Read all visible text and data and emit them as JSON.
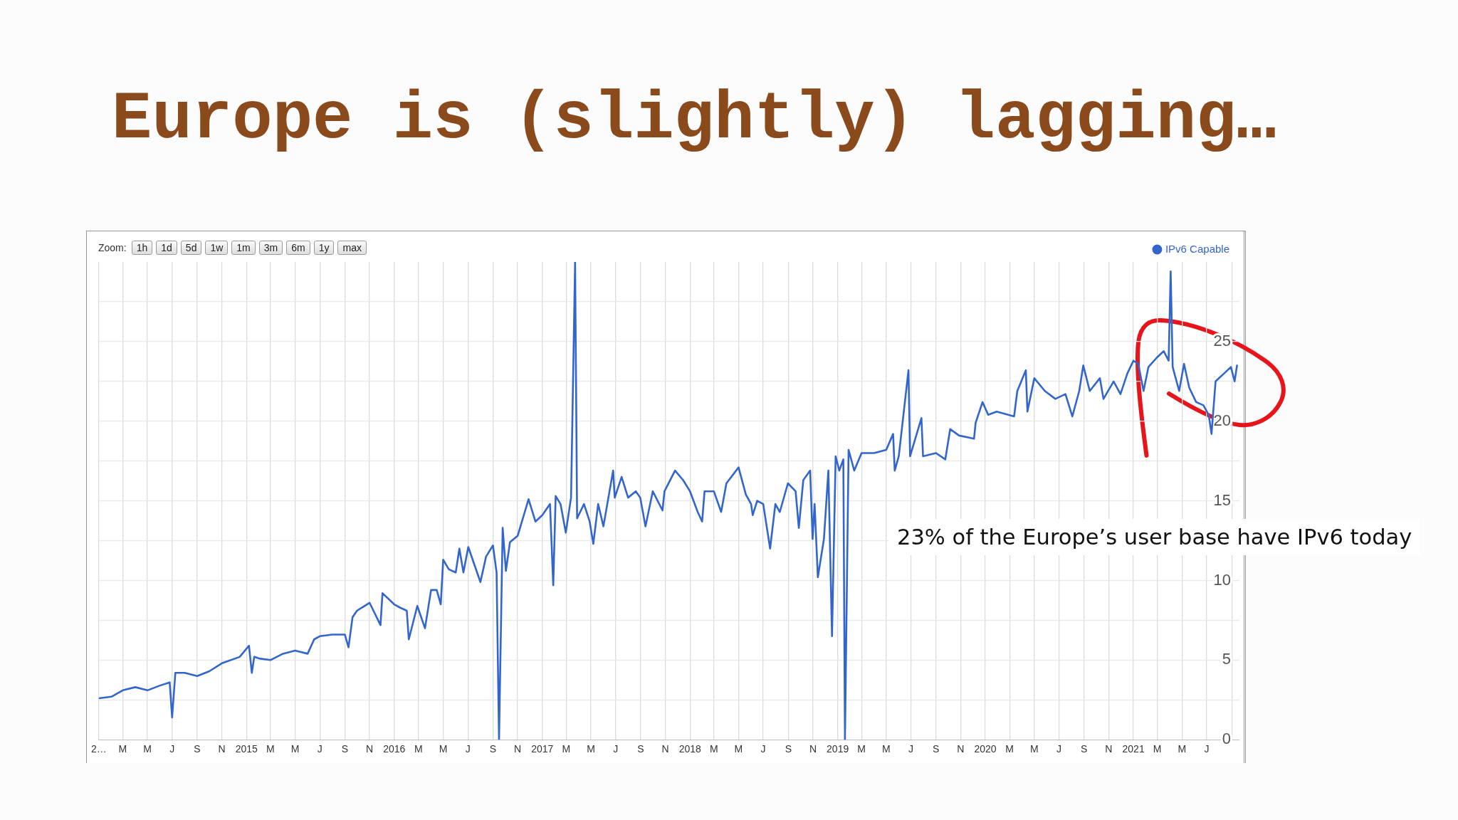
{
  "chart_data": {
    "type": "line",
    "title": "Europe is (slightly) lagging…",
    "annotations": [
      "23% of the Europe’s user base have IPv6 today",
      "Zoom:",
      "1h",
      "1d",
      "5d",
      "1w",
      "1m",
      "3m",
      "6m",
      "1y",
      "max"
    ],
    "legend": "top right",
    "grid": true,
    "xlim": [
      "2014-01-01",
      "2021-09-20"
    ],
    "xticks": [
      {
        "value": "2014-01-01",
        "label": "2…"
      },
      {
        "value": "2014-03-01",
        "label": "M"
      },
      {
        "value": "2014-05-01",
        "label": "M"
      },
      {
        "value": "2014-07-01",
        "label": "J"
      },
      {
        "value": "2014-09-01",
        "label": "S"
      },
      {
        "value": "2014-11-01",
        "label": "N"
      },
      {
        "value": "2015-01-01",
        "label": "2015"
      },
      {
        "value": "2015-03-01",
        "label": "M"
      },
      {
        "value": "2015-05-01",
        "label": "M"
      },
      {
        "value": "2015-07-01",
        "label": "J"
      },
      {
        "value": "2015-09-01",
        "label": "S"
      },
      {
        "value": "2015-11-01",
        "label": "N"
      },
      {
        "value": "2016-01-01",
        "label": "2016"
      },
      {
        "value": "2016-03-01",
        "label": "M"
      },
      {
        "value": "2016-05-01",
        "label": "M"
      },
      {
        "value": "2016-07-01",
        "label": "J"
      },
      {
        "value": "2016-09-01",
        "label": "S"
      },
      {
        "value": "2016-11-01",
        "label": "N"
      },
      {
        "value": "2017-01-01",
        "label": "2017"
      },
      {
        "value": "2017-03-01",
        "label": "M"
      },
      {
        "value": "2017-05-01",
        "label": "M"
      },
      {
        "value": "2017-07-01",
        "label": "J"
      },
      {
        "value": "2017-09-01",
        "label": "S"
      },
      {
        "value": "2017-11-01",
        "label": "N"
      },
      {
        "value": "2018-01-01",
        "label": "2018"
      },
      {
        "value": "2018-03-01",
        "label": "M"
      },
      {
        "value": "2018-05-01",
        "label": "M"
      },
      {
        "value": "2018-07-01",
        "label": "J"
      },
      {
        "value": "2018-09-01",
        "label": "S"
      },
      {
        "value": "2018-11-01",
        "label": "N"
      },
      {
        "value": "2019-01-01",
        "label": "2019"
      },
      {
        "value": "2019-03-01",
        "label": "M"
      },
      {
        "value": "2019-05-01",
        "label": "M"
      },
      {
        "value": "2019-07-01",
        "label": "J"
      },
      {
        "value": "2019-09-01",
        "label": "S"
      },
      {
        "value": "2019-11-01",
        "label": "N"
      },
      {
        "value": "2020-01-01",
        "label": "2020"
      },
      {
        "value": "2020-03-01",
        "label": "M"
      },
      {
        "value": "2020-05-01",
        "label": "M"
      },
      {
        "value": "2020-07-01",
        "label": "J"
      },
      {
        "value": "2020-09-01",
        "label": "S"
      },
      {
        "value": "2020-11-01",
        "label": "N"
      },
      {
        "value": "2021-01-01",
        "label": "2021"
      },
      {
        "value": "2021-03-01",
        "label": "M"
      },
      {
        "value": "2021-05-01",
        "label": "M"
      },
      {
        "value": "2021-07-01",
        "label": "J"
      },
      {
        "value": "2021-09-01",
        "label": null
      }
    ],
    "ylim": [
      0,
      30
    ],
    "yticks": [
      0,
      {
        "value": 2.5,
        "label": null
      },
      5,
      {
        "value": 7.5,
        "label": null
      },
      10,
      {
        "value": 12.5,
        "label": null
      },
      15,
      {
        "value": 17.5,
        "label": null
      },
      20,
      {
        "value": 22.5,
        "label": null
      },
      25,
      {
        "value": 27.5,
        "label": null
      }
    ],
    "x": [
      "2014-01-01",
      "2014-02-01",
      "2014-03-01",
      "2014-04-01",
      "2014-05-01",
      "2014-06-01",
      "2014-06-25",
      "2014-07-01",
      "2014-07-09",
      "2014-08-01",
      "2014-09-01",
      "2014-10-01",
      "2014-11-01",
      "2014-12-15",
      "2015-01-07",
      "2015-01-14",
      "2015-01-20",
      "2015-02-01",
      "2015-03-01",
      "2015-04-01",
      "2015-05-01",
      "2015-06-01",
      "2015-06-17",
      "2015-07-01",
      "2015-08-01",
      "2015-09-01",
      "2015-09-10",
      "2015-09-20",
      "2015-10-01",
      "2015-11-01",
      "2015-11-28",
      "2015-12-03",
      "2016-01-01",
      "2016-01-15",
      "2016-02-01",
      "2016-02-06",
      "2016-02-27",
      "2016-03-17",
      "2016-04-01",
      "2016-04-15",
      "2016-04-25",
      "2016-05-01",
      "2016-05-15",
      "2016-06-01",
      "2016-06-10",
      "2016-06-20",
      "2016-07-02",
      "2016-08-01",
      "2016-08-15",
      "2016-09-01",
      "2016-09-10",
      "2016-09-16",
      "2016-09-25",
      "2016-10-03",
      "2016-10-13",
      "2016-11-01",
      "2016-11-28",
      "2016-12-15",
      "2017-01-01",
      "2017-01-20",
      "2017-01-28",
      "2017-02-03",
      "2017-02-15",
      "2017-02-28",
      "2017-03-13",
      "2017-03-23",
      "2017-03-28",
      "2017-04-14",
      "2017-04-28",
      "2017-05-07",
      "2017-05-19",
      "2017-06-01",
      "2017-06-25",
      "2017-06-29",
      "2017-07-16",
      "2017-08-01",
      "2017-08-20",
      "2017-08-31",
      "2017-09-13",
      "2017-10-01",
      "2017-10-25",
      "2017-10-30",
      "2017-11-25",
      "2017-12-15",
      "2018-01-01",
      "2018-01-20",
      "2018-01-31",
      "2018-02-06",
      "2018-03-01",
      "2018-03-19",
      "2018-04-01",
      "2018-05-01",
      "2018-05-19",
      "2018-06-01",
      "2018-06-05",
      "2018-06-16",
      "2018-07-01",
      "2018-07-18",
      "2018-07-31",
      "2018-08-11",
      "2018-08-31",
      "2018-09-19",
      "2018-09-27",
      "2018-10-08",
      "2018-10-25",
      "2018-10-31",
      "2018-11-05",
      "2018-11-13",
      "2018-11-28",
      "2018-12-09",
      "2018-12-18",
      "2018-12-27",
      "2019-01-05",
      "2019-01-15",
      "2019-01-19",
      "2019-01-28",
      "2019-02-11",
      "2019-03-01",
      "2019-04-01",
      "2019-05-01",
      "2019-05-18",
      "2019-05-22",
      "2019-06-01",
      "2019-06-25",
      "2019-06-29",
      "2019-07-27",
      "2019-07-31",
      "2019-09-01",
      "2019-09-24",
      "2019-10-06",
      "2019-10-28",
      "2019-12-04",
      "2019-12-08",
      "2019-12-25",
      "2020-01-08",
      "2020-01-29",
      "2020-03-12",
      "2020-03-20",
      "2020-04-10",
      "2020-04-14",
      "2020-05-01",
      "2020-05-27",
      "2020-06-22",
      "2020-07-17",
      "2020-08-03",
      "2020-08-20",
      "2020-08-30",
      "2020-09-15",
      "2020-10-10",
      "2020-10-19",
      "2020-11-13",
      "2020-11-30",
      "2020-12-17",
      "2021-01-01",
      "2021-01-13",
      "2021-01-26",
      "2021-02-07",
      "2021-02-28",
      "2021-03-17",
      "2021-03-29",
      "2021-04-03",
      "2021-04-08",
      "2021-04-24",
      "2021-05-06",
      "2021-05-19",
      "2021-06-05",
      "2021-06-23",
      "2021-07-06",
      "2021-07-13",
      "2021-07-23",
      "2021-08-13",
      "2021-08-30",
      "2021-09-08",
      "2021-09-14"
    ],
    "series": [
      {
        "name": "IPv6 Capable",
        "color": "#3366cc",
        "values": [
          2.6,
          2.7,
          3.1,
          3.3,
          3.1,
          3.4,
          3.6,
          1.4,
          4.2,
          4.2,
          4.0,
          4.3,
          4.8,
          5.2,
          5.9,
          4.2,
          5.2,
          5.1,
          5.0,
          5.4,
          5.6,
          5.4,
          6.3,
          6.5,
          6.6,
          6.6,
          5.8,
          7.7,
          8.1,
          8.6,
          7.2,
          9.2,
          8.5,
          8.3,
          8.1,
          6.3,
          8.4,
          7.0,
          9.4,
          9.4,
          8.5,
          11.3,
          10.7,
          10.5,
          12.0,
          10.5,
          12.1,
          9.9,
          11.5,
          12.2,
          10.5,
          0,
          13.3,
          10.6,
          12.4,
          12.8,
          15.1,
          13.7,
          14.1,
          14.8,
          9.7,
          15.3,
          14.8,
          13.0,
          15.2,
          30,
          13.9,
          14.8,
          13.7,
          12.3,
          14.8,
          13.4,
          16.9,
          15.2,
          16.5,
          15.2,
          15.6,
          15.2,
          13.4,
          15.6,
          14.4,
          15.6,
          16.9,
          16.3,
          15.6,
          14.3,
          13.7,
          15.6,
          15.6,
          14.3,
          16.1,
          17.1,
          15.4,
          14.8,
          14.1,
          15.0,
          14.8,
          12.0,
          14.8,
          14.3,
          16.1,
          15.6,
          13.3,
          16.3,
          16.9,
          12.6,
          14.8,
          10.2,
          12.6,
          16.9,
          6.5,
          17.8,
          16.9,
          17.6,
          0,
          18.2,
          16.9,
          18.0,
          18.0,
          18.2,
          19.2,
          16.9,
          17.8,
          23.2,
          17.8,
          20.2,
          17.8,
          18.0,
          17.6,
          19.5,
          19.1,
          18.9,
          19.9,
          21.2,
          20.4,
          20.6,
          20.3,
          21.9,
          23.2,
          20.6,
          22.7,
          21.9,
          21.4,
          21.7,
          20.3,
          21.9,
          23.5,
          21.9,
          22.7,
          21.4,
          22.5,
          21.7,
          23.0,
          23.8,
          23.6,
          21.9,
          23.4,
          24.0,
          24.4,
          23.8,
          29.4,
          23.4,
          21.9,
          23.6,
          22.1,
          21.2,
          21.0,
          20.4,
          19.2,
          22.5,
          23.0,
          23.4,
          22.5,
          23.5
        ]
      }
    ]
  }
}
